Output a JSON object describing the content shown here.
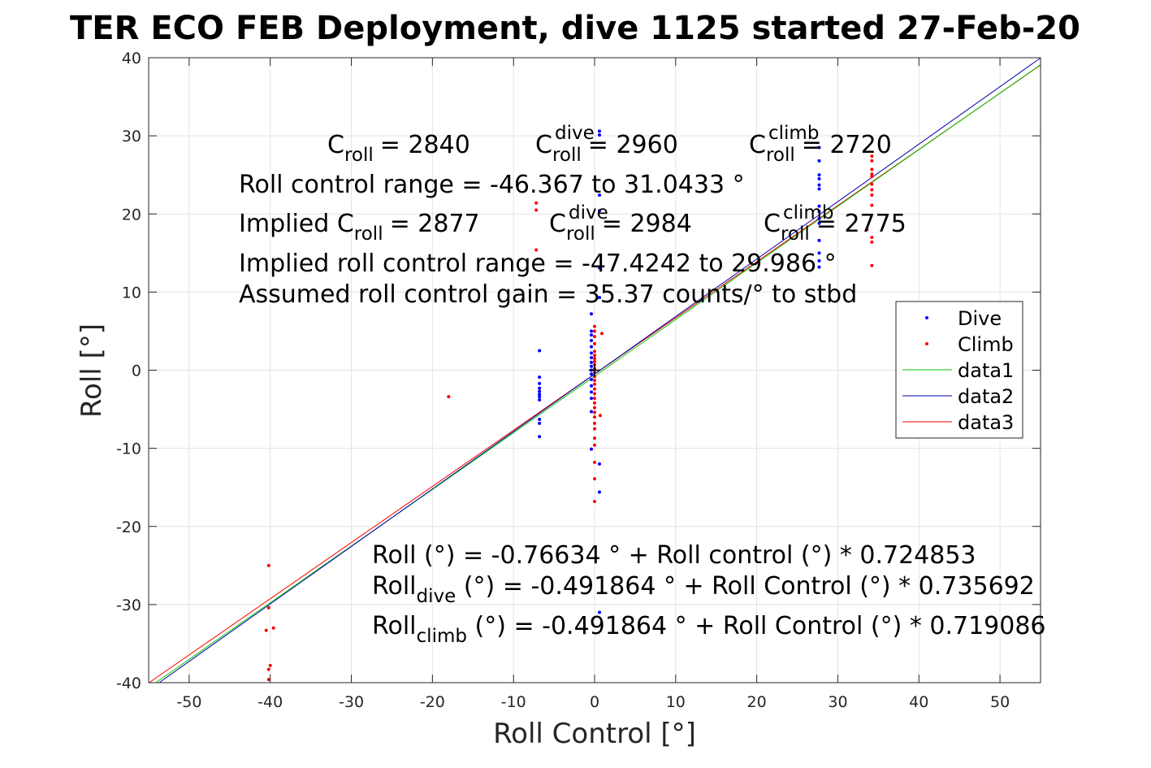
{
  "chart_data": {
    "type": "scatter",
    "title": "TER ECO FEB Deployment, dive 1125 started 27-Feb-20",
    "xlabel": "Roll Control [°]",
    "ylabel": "Roll [°]",
    "xlim": [
      -55,
      55
    ],
    "ylim": [
      -40,
      40
    ],
    "xticks": [
      -50,
      -40,
      -30,
      -20,
      -10,
      0,
      10,
      20,
      30,
      40,
      50
    ],
    "yticks": [
      -40,
      -30,
      -20,
      -10,
      0,
      10,
      20,
      30,
      40
    ],
    "grid": true,
    "legend_placement": "right",
    "legend": [
      "Dive",
      "Climb",
      "data1",
      "data2",
      "data3"
    ],
    "colors": {
      "dive": "#0000ff",
      "climb": "#ff0000",
      "data1": "#00cc00",
      "data2": "#0000aa",
      "data3": "#ff0000",
      "grid": "#e3e3e3",
      "axis": "#262626"
    },
    "annotations": {
      "c_roll": "= 2840",
      "c_roll_dive": "= 2960",
      "c_roll_climb": "= 2720",
      "roll_control_range": "Roll control range = -46.367 to 31.0433 °",
      "implied_prefix": "Implied C",
      "implied_c_roll": "= 2877",
      "implied_c_roll_dive": "= 2984",
      "implied_c_roll_climb": "= 2775",
      "implied_roll_control_range": "Implied roll control range = -47.4242 to 29.986 °",
      "assumed_gain": "Assumed roll control gain = 35.37 counts/° to stbd",
      "fit_all": "Roll (°) = -0.76634 ° + Roll control (°) * 0.724853",
      "fit_dive_rest": " (°) = -0.491864 ° + Roll Control (°) * 0.735692",
      "fit_climb_rest": " (°) = -0.491864 ° + Roll Control (°) * 0.719086",
      "sym_C": "C",
      "sym_roll": "roll",
      "sym_dive": "dive",
      "sym_climb": "climb",
      "sym_Roll": "Roll"
    },
    "series": [
      {
        "name": "Dive",
        "marker": "dot",
        "points": [
          [
            0.6,
            30.6
          ],
          [
            0.6,
            30.1
          ],
          [
            0.6,
            22.4
          ],
          [
            0.6,
            20.4
          ],
          [
            0.6,
            13.1
          ],
          [
            0.6,
            9.3
          ],
          [
            -0.4,
            7.2
          ],
          [
            -0.4,
            5.0
          ],
          [
            -0.4,
            4.5
          ],
          [
            -0.4,
            3.8
          ],
          [
            -0.4,
            3.0
          ],
          [
            -0.4,
            2.2
          ],
          [
            -0.4,
            1.6
          ],
          [
            -0.4,
            1.0
          ],
          [
            -0.4,
            0.5
          ],
          [
            -0.4,
            0.0
          ],
          [
            -0.4,
            -0.5
          ],
          [
            -0.4,
            -1.2
          ],
          [
            -0.4,
            -2.0
          ],
          [
            -0.4,
            -2.8
          ],
          [
            -0.4,
            -3.6
          ],
          [
            -0.4,
            -5.3
          ],
          [
            0.6,
            -12.0
          ],
          [
            0.6,
            -15.6
          ],
          [
            0.6,
            -31.0
          ],
          [
            -0.4,
            -10.1
          ],
          [
            -6.8,
            2.5
          ],
          [
            -6.8,
            -0.9
          ],
          [
            -6.8,
            -1.7
          ],
          [
            -6.8,
            -2.3
          ],
          [
            -6.8,
            -2.7
          ],
          [
            -6.8,
            -3.1
          ],
          [
            -6.8,
            -3.4
          ],
          [
            -6.8,
            -3.8
          ],
          [
            -6.8,
            -6.3
          ],
          [
            -6.8,
            -6.8
          ],
          [
            -6.8,
            -8.5
          ],
          [
            27.7,
            28.5
          ],
          [
            27.7,
            26.8
          ],
          [
            27.7,
            25.0
          ],
          [
            27.7,
            24.5
          ],
          [
            27.7,
            23.7
          ],
          [
            27.7,
            23.2
          ],
          [
            27.7,
            21.0
          ],
          [
            27.7,
            20.3
          ],
          [
            27.7,
            19.4
          ],
          [
            27.7,
            18.8
          ],
          [
            27.7,
            16.6
          ],
          [
            27.7,
            15.0
          ],
          [
            27.7,
            14.0
          ],
          [
            27.7,
            13.2
          ]
        ]
      },
      {
        "name": "Climb",
        "marker": "dot",
        "points": [
          [
            -7.2,
            21.4
          ],
          [
            -7.2,
            20.5
          ],
          [
            -7.2,
            15.4
          ],
          [
            -18.0,
            -3.4
          ],
          [
            0.0,
            5.6
          ],
          [
            0.0,
            5.0
          ],
          [
            0.0,
            4.3
          ],
          [
            0.0,
            3.4
          ],
          [
            0.0,
            2.4
          ],
          [
            0.0,
            1.9
          ],
          [
            0.0,
            1.5
          ],
          [
            0.0,
            1.1
          ],
          [
            0.0,
            0.7
          ],
          [
            0.0,
            0.2
          ],
          [
            0.0,
            -0.3
          ],
          [
            0.0,
            -0.8
          ],
          [
            0.0,
            -1.3
          ],
          [
            0.0,
            -1.8
          ],
          [
            0.0,
            -2.4
          ],
          [
            0.0,
            -3.0
          ],
          [
            0.0,
            -3.6
          ],
          [
            0.0,
            -4.2
          ],
          [
            0.0,
            -4.8
          ],
          [
            0.0,
            -5.4
          ],
          [
            0.0,
            -6.0
          ],
          [
            0.0,
            -6.8
          ],
          [
            0.0,
            -7.5
          ],
          [
            0.0,
            -8.7
          ],
          [
            0.0,
            -9.6
          ],
          [
            0.0,
            -11.8
          ],
          [
            0.0,
            -13.9
          ],
          [
            0.0,
            -16.8
          ],
          [
            0.9,
            4.7
          ],
          [
            0.7,
            -5.8
          ],
          [
            34.2,
            27.4
          ],
          [
            34.2,
            26.8
          ],
          [
            34.2,
            25.7
          ],
          [
            34.2,
            25.1
          ],
          [
            34.2,
            24.8
          ],
          [
            34.2,
            23.8
          ],
          [
            34.2,
            23.1
          ],
          [
            34.2,
            22.4
          ],
          [
            34.2,
            21.1
          ],
          [
            34.2,
            17.0
          ],
          [
            34.2,
            16.4
          ],
          [
            34.2,
            13.4
          ],
          [
            33.6,
            18.0
          ],
          [
            -40.2,
            -25.0
          ],
          [
            -40.2,
            -30.4
          ],
          [
            -40.5,
            -33.3
          ],
          [
            -39.6,
            -33.0
          ],
          [
            -40.0,
            -37.8
          ],
          [
            -40.2,
            -38.3
          ],
          [
            -40.2,
            -39.6
          ]
        ]
      },
      {
        "name": "data1",
        "marker": "line",
        "intercept": -0.76634,
        "slope": 0.724853
      },
      {
        "name": "data2",
        "marker": "line",
        "intercept": -0.491864,
        "slope": 0.735692
      },
      {
        "name": "data3",
        "marker": "line",
        "intercept": -0.491864,
        "slope": 0.719086
      }
    ]
  }
}
